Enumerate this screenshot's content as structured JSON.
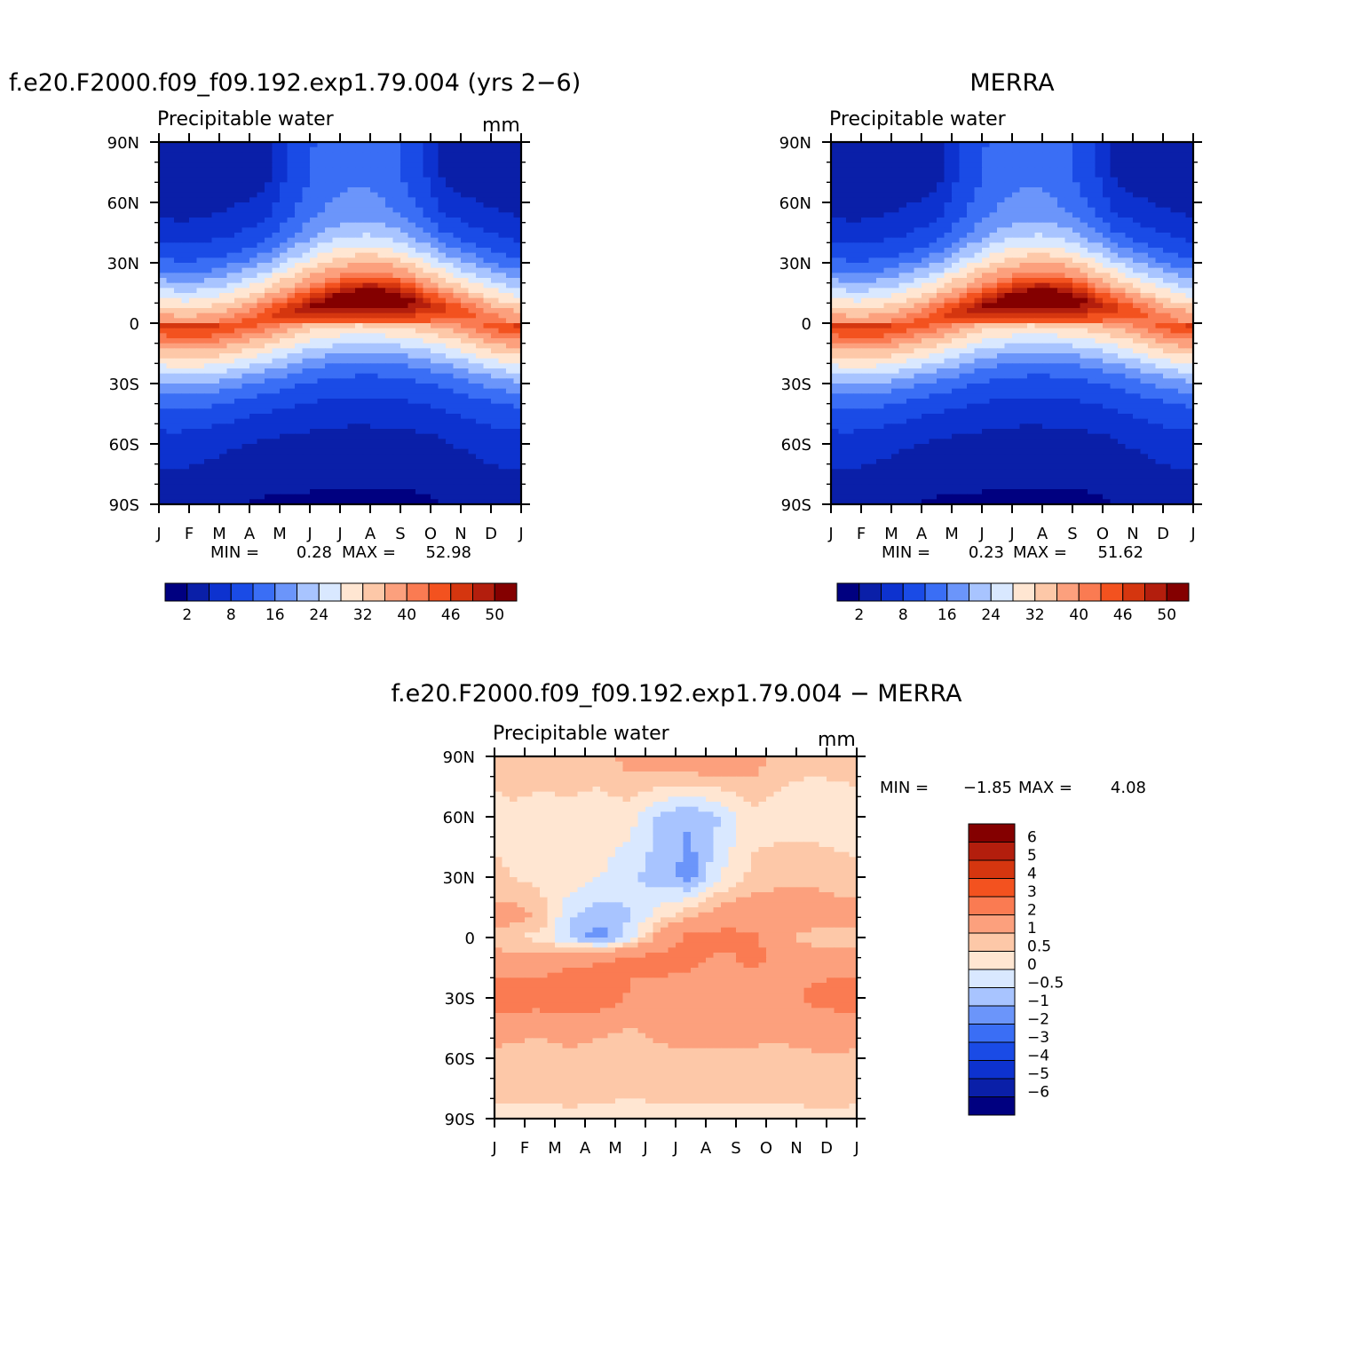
{
  "chart_data": [
    {
      "id": "model",
      "type": "heatmap",
      "title": "f.e20.F2000.f09_f09.192.exp1.79.004 (yrs 2−6)",
      "subtitle": "Precipitable water",
      "units": "mm",
      "xlabel": "",
      "ylabel": "",
      "x_ticks": [
        "J",
        "F",
        "M",
        "A",
        "M",
        "J",
        "J",
        "A",
        "S",
        "O",
        "N",
        "D",
        "J"
      ],
      "y_ticks": [
        "90N",
        "60N",
        "30N",
        "0",
        "30S",
        "60S",
        "90S"
      ],
      "ylim": [
        -90,
        90
      ],
      "stats": {
        "min_label": "MIN =",
        "min": "0.28",
        "max_label": "MAX =",
        "max": "52.98"
      },
      "colorbar": {
        "orientation": "horizontal",
        "colors": [
          "#000080",
          "#0a1fa8",
          "#0d32cf",
          "#1a4be6",
          "#3a6ef5",
          "#6b95fa",
          "#a8c4ff",
          "#d9e8ff",
          "#ffe6d2",
          "#fdc8a8",
          "#fca07d",
          "#fa7b52",
          "#f3521f",
          "#d5360f",
          "#b31e0d",
          "#840000"
        ],
        "labels": [
          "2",
          "8",
          "16",
          "24",
          "32",
          "40",
          "46",
          "50"
        ]
      },
      "field": {
        "description": "zonal-mean monthly climatology; color index 0-15 into colorbar",
        "max_level": 15,
        "itcz_peak_lat": [
          -4,
          -3,
          -4,
          -3,
          2,
          6,
          8,
          9,
          8,
          6,
          3,
          -2
        ],
        "itcz_peak_level": [
          13,
          13,
          14,
          14,
          14,
          15,
          15,
          15,
          15,
          14,
          13,
          13
        ]
      }
    },
    {
      "id": "obs",
      "type": "heatmap",
      "title": "MERRA",
      "subtitle": "Precipitable water",
      "units": "",
      "x_ticks": [
        "J",
        "F",
        "M",
        "A",
        "M",
        "J",
        "J",
        "A",
        "S",
        "O",
        "N",
        "D",
        "J"
      ],
      "y_ticks": [
        "90N",
        "60N",
        "30N",
        "0",
        "30S",
        "60S",
        "90S"
      ],
      "ylim": [
        -90,
        90
      ],
      "stats": {
        "min_label": "MIN =",
        "min": "0.23",
        "max_label": "MAX =",
        "max": "51.62"
      },
      "colorbar": {
        "orientation": "horizontal",
        "colors": [
          "#000080",
          "#0a1fa8",
          "#0d32cf",
          "#1a4be6",
          "#3a6ef5",
          "#6b95fa",
          "#a8c4ff",
          "#d9e8ff",
          "#ffe6d2",
          "#fdc8a8",
          "#fca07d",
          "#fa7b52",
          "#f3521f",
          "#d5360f",
          "#b31e0d",
          "#840000"
        ],
        "labels": [
          "2",
          "8",
          "16",
          "24",
          "32",
          "40",
          "46",
          "50"
        ]
      },
      "field": {
        "description": "zonal-mean monthly climatology; color index 0-15 into colorbar",
        "max_level": 15,
        "itcz_peak_lat": [
          -4,
          -4,
          -4,
          -3,
          2,
          6,
          8,
          9,
          8,
          5,
          2,
          -2
        ],
        "itcz_peak_level": [
          13,
          13,
          14,
          14,
          14,
          14,
          15,
          15,
          15,
          14,
          13,
          13
        ]
      }
    },
    {
      "id": "diff",
      "type": "heatmap",
      "title": "f.e20.F2000.f09_f09.192.exp1.79.004 − MERRA",
      "subtitle": "Precipitable water",
      "units": "mm",
      "x_ticks": [
        "J",
        "F",
        "M",
        "A",
        "M",
        "J",
        "J",
        "A",
        "S",
        "O",
        "N",
        "D",
        "J"
      ],
      "y_ticks": [
        "90N",
        "60N",
        "30N",
        "0",
        "30S",
        "60S",
        "90S"
      ],
      "ylim": [
        -90,
        90
      ],
      "stats": {
        "min_label": "MIN =",
        "min": "−1.85",
        "max_label": "MAX =",
        "max": "4.08"
      },
      "colorbar": {
        "orientation": "vertical",
        "colors": [
          "#840000",
          "#b31e0d",
          "#d5360f",
          "#f3521f",
          "#fa7b52",
          "#fca07d",
          "#fdc8a8",
          "#ffe6d2",
          "#d9e8ff",
          "#a8c4ff",
          "#6b95fa",
          "#3a6ef5",
          "#1a4be6",
          "#0d32cf",
          "#0a1fa8",
          "#000080"
        ],
        "labels": [
          "6",
          "5",
          "4",
          "3",
          "2",
          "1",
          "0.5",
          "0",
          "−0.5",
          "−1",
          "−2",
          "−3",
          "−4",
          "−5",
          "−6"
        ],
        "levels_top_to_bottom": [
          6,
          5,
          4,
          3,
          2,
          1,
          0.5,
          0,
          -0.5,
          -1,
          -2,
          -3,
          -4,
          -5,
          -6
        ]
      },
      "field": {
        "description": "difference model minus MERRA by month and latitude (mm)",
        "lat_rows": [
          90,
          60,
          30,
          10,
          0,
          -10,
          -30,
          -45,
          -60,
          -90
        ],
        "rows": [
          [
            0.8,
            0.8,
            0.7,
            0.6,
            1.3,
            1.6,
            1.8,
            1.7,
            1.4,
            0.7,
            0.6,
            0.7
          ],
          [
            0.4,
            0.3,
            0.4,
            0.4,
            0.2,
            -0.6,
            -1.0,
            -0.5,
            0.3,
            0.3,
            0.3,
            0.2
          ],
          [
            0.5,
            0.3,
            0.4,
            0.0,
            -0.4,
            -0.8,
            -1.2,
            0.0,
            0.6,
            0.8,
            0.8,
            0.7
          ],
          [
            1.3,
            0.9,
            -0.5,
            -0.9,
            -0.5,
            0.3,
            1.0,
            1.4,
            1.6,
            1.6,
            1.5,
            1.3
          ],
          [
            0.6,
            0.3,
            -0.6,
            -1.3,
            -0.2,
            1.4,
            2.3,
            2.4,
            2.2,
            1.4,
            0.6,
            0.5
          ],
          [
            1.2,
            1.4,
            1.7,
            1.9,
            2.1,
            2.3,
            2.2,
            1.8,
            2.2,
            1.9,
            1.5,
            1.4
          ],
          [
            2.7,
            2.6,
            3.0,
            2.6,
            1.9,
            1.7,
            1.6,
            1.5,
            1.4,
            1.5,
            2.2,
            2.6
          ],
          [
            1.2,
            1.1,
            1.2,
            1.1,
            1.0,
            1.2,
            1.6,
            1.4,
            1.3,
            1.2,
            1.3,
            1.4
          ],
          [
            0.8,
            0.8,
            0.9,
            0.8,
            0.7,
            0.8,
            0.8,
            0.8,
            0.8,
            0.8,
            0.9,
            0.9
          ],
          [
            0.4,
            0.4,
            0.4,
            0.4,
            0.4,
            0.4,
            0.4,
            0.4,
            0.4,
            0.4,
            0.4,
            0.4
          ]
        ]
      }
    }
  ]
}
